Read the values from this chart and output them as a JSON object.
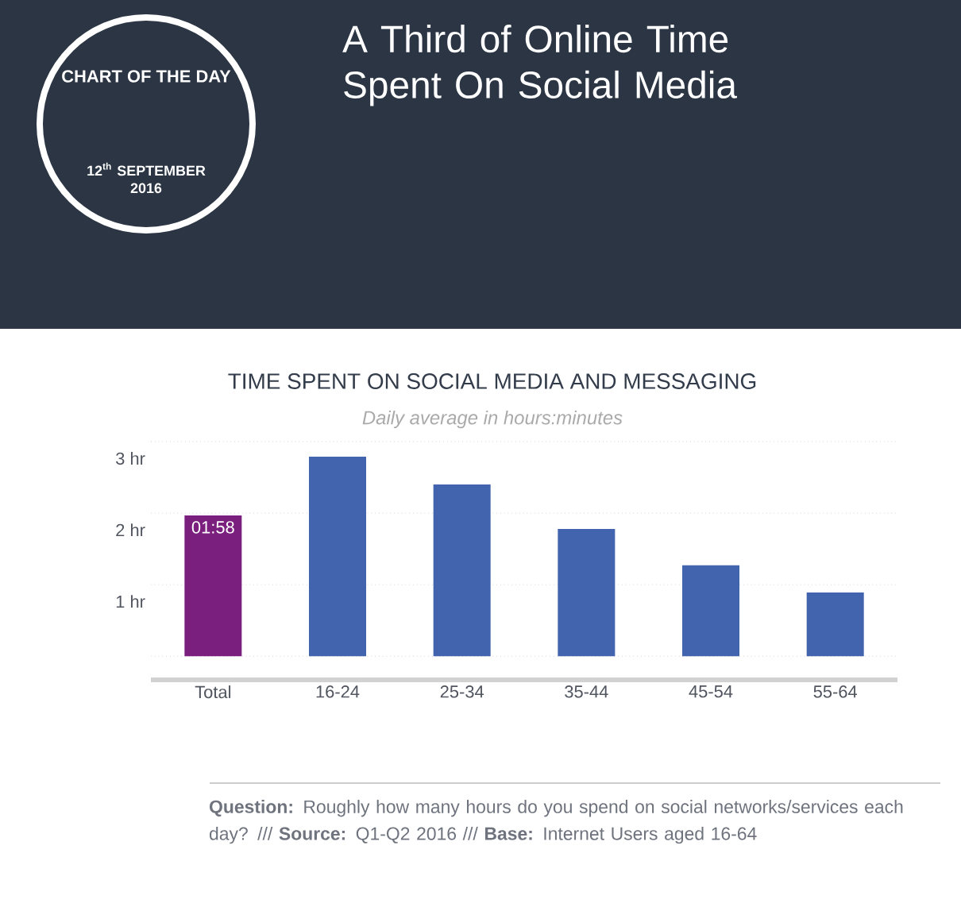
{
  "chart_data": {
    "type": "bar",
    "title": "TIME SPENT ON SOCIAL MEDIA AND MESSAGING",
    "subtitle": "Daily average in hours:minutes",
    "categories": [
      "Total",
      "16-24",
      "25-34",
      "35-44",
      "45-54",
      "55-64"
    ],
    "values": [
      1.967,
      2.79,
      2.4,
      1.78,
      1.27,
      0.89
    ],
    "colors": [
      "#7b1f7f",
      "#4263ad",
      "#4263ad",
      "#4263ad",
      "#4263ad",
      "#4263ad"
    ],
    "value_labels": [
      "01:58",
      null,
      null,
      null,
      null,
      null
    ],
    "ylim": [
      -0.33,
      3
    ],
    "yticks": [
      {
        "value": 0,
        "label": null
      },
      {
        "value": 1,
        "label": "1 hr"
      },
      {
        "value": 2,
        "label": "2 hr"
      },
      {
        "value": 3,
        "label": "3 hr"
      }
    ],
    "grid": "y",
    "annotations": [
      "A Third of Online Time Spent On Social Media",
      "CHART OF THE DAY",
      "12$^{th}$ SEPTEMBER 2016",
      "**Question:** Roughly how many hours do you spend on social networks/services each day? /// **Source:** Q1-Q2 2016 /// **Base:** Internet Users aged 16-64"
    ]
  }
}
